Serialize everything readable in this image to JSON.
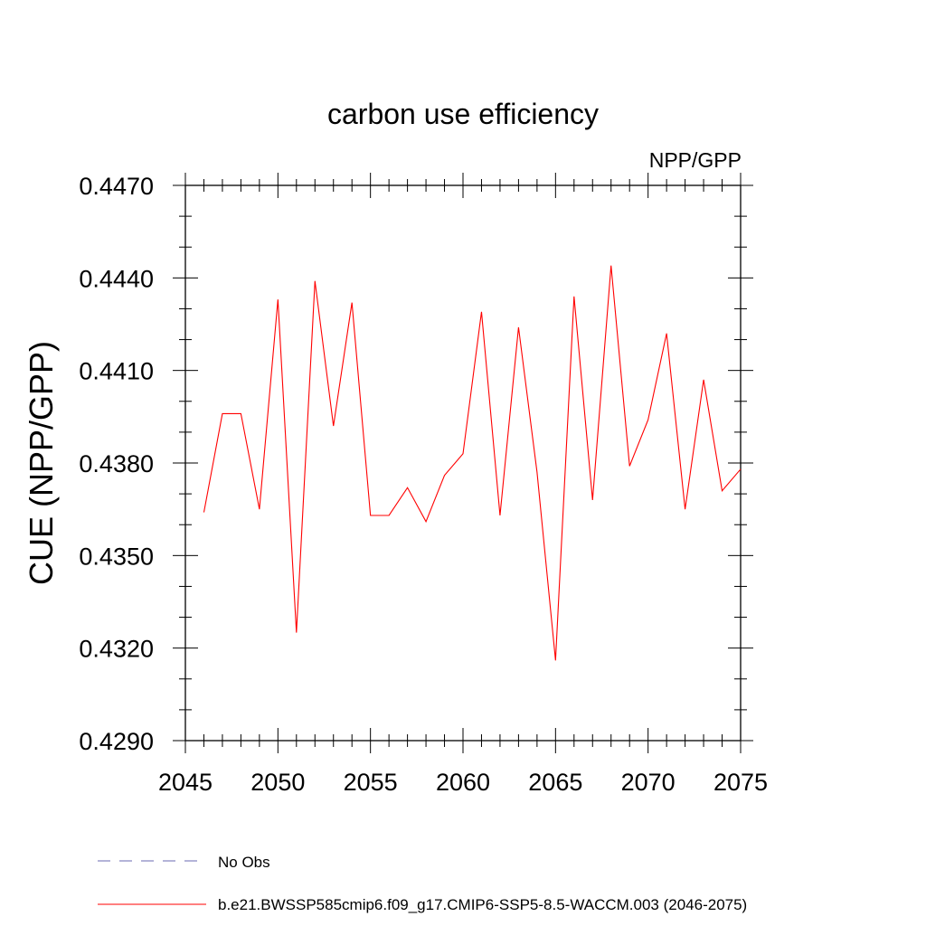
{
  "chart_data": {
    "type": "line",
    "title": "carbon use efficiency",
    "subtitle": "NPP/GPP",
    "xlabel": "",
    "ylabel": "CUE  (NPP/GPP)",
    "xlim": [
      2045,
      2075
    ],
    "ylim": [
      0.429,
      0.447
    ],
    "xticks": [
      2045,
      2050,
      2055,
      2060,
      2065,
      2070,
      2075
    ],
    "xtick_labels": [
      "2045",
      "2050",
      "2055",
      "2060",
      "2065",
      "2070",
      "2075"
    ],
    "yticks": [
      0.429,
      0.432,
      0.435,
      0.438,
      0.441,
      0.444,
      0.447
    ],
    "ytick_labels": [
      "0.4290",
      "0.4320",
      "0.4350",
      "0.4380",
      "0.4410",
      "0.4440",
      "0.4470"
    ],
    "grid": false,
    "series": [
      {
        "name": "b.e21.BWSSP585cmip6.f09_g17.CMIP6-SSP5-8.5-WACCM.003 (2046-2075)",
        "color": "#ff0000",
        "style": "solid",
        "x": [
          2046,
          2047,
          2048,
          2049,
          2050,
          2051,
          2052,
          2053,
          2054,
          2055,
          2056,
          2057,
          2058,
          2059,
          2060,
          2061,
          2062,
          2063,
          2064,
          2065,
          2066,
          2067,
          2068,
          2069,
          2070,
          2071,
          2072,
          2073,
          2074,
          2075
        ],
        "values": [
          0.4364,
          0.4396,
          0.4396,
          0.4365,
          0.4433,
          0.4325,
          0.4439,
          0.4392,
          0.4432,
          0.4363,
          0.4363,
          0.4372,
          0.4361,
          0.4376,
          0.4383,
          0.4429,
          0.4363,
          0.4424,
          0.4377,
          0.4316,
          0.4434,
          0.4368,
          0.4444,
          0.4379,
          0.4394,
          0.4422,
          0.4365,
          0.4407,
          0.4371,
          0.4378
        ]
      }
    ],
    "legend": {
      "placement": "bottom-left",
      "entries": [
        {
          "label": "No Obs",
          "color": "#6a6ab0",
          "style": "dashed"
        },
        {
          "label": "b.e21.BWSSP585cmip6.f09_g17.CMIP6-SSP5-8.5-WACCM.003 (2046-2075)",
          "color": "#ff0000",
          "style": "solid"
        }
      ]
    }
  }
}
